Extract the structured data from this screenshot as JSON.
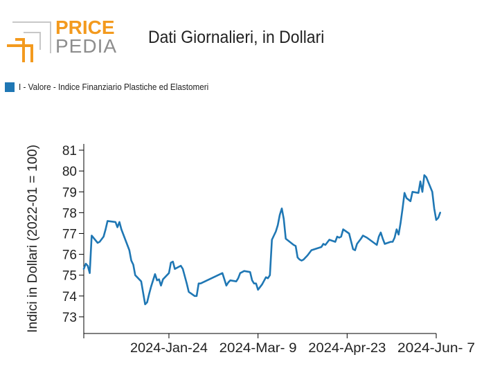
{
  "brand": {
    "line1": "PRICE",
    "line2": "PEDIA",
    "accent": "#f39a1e",
    "grey": "#8d8d8d"
  },
  "title": "Dati Giornalieri, in Dollari",
  "legend": {
    "label": "I - Valore - Indice Finanziario Plastiche ed Elastomeri",
    "color": "#1f77b4"
  },
  "chart_data": {
    "type": "line",
    "ylabel": "Indici in Dollari (2022-01 = 100)",
    "xlabel": "",
    "ylim": [
      72.2,
      81.3
    ],
    "yticks": [
      73,
      74,
      75,
      76,
      77,
      78,
      79,
      80,
      81
    ],
    "xlim": [
      "2023-12-12",
      "2024-06-07"
    ],
    "xticks": [
      {
        "date": "2024-01-24",
        "label": "2024-Jan-24"
      },
      {
        "date": "2024-03-09",
        "label": "2024-Mar- 9"
      },
      {
        "date": "2024-04-23",
        "label": "2024-Apr-23"
      },
      {
        "date": "2024-06-07",
        "label": "2024-Jun- 7"
      }
    ],
    "series": [
      {
        "color": "#1f77b4",
        "points": [
          [
            "2023-12-12",
            75.3
          ],
          [
            "2023-12-13",
            75.55
          ],
          [
            "2023-12-14",
            75.45
          ],
          [
            "2023-12-15",
            75.1
          ],
          [
            "2023-12-16",
            76.9
          ],
          [
            "2023-12-19",
            76.55
          ],
          [
            "2023-12-20",
            76.6
          ],
          [
            "2023-12-22",
            76.85
          ],
          [
            "2023-12-23",
            77.2
          ],
          [
            "2023-12-24",
            77.6
          ],
          [
            "2023-12-28",
            77.55
          ],
          [
            "2023-12-29",
            77.3
          ],
          [
            "2023-12-30",
            77.55
          ],
          [
            "2023-12-31",
            77.2
          ],
          [
            "2024-01-04",
            76.2
          ],
          [
            "2024-01-05",
            75.7
          ],
          [
            "2024-01-06",
            75.5
          ],
          [
            "2024-01-07",
            75.0
          ],
          [
            "2024-01-10",
            74.7
          ],
          [
            "2024-01-12",
            73.6
          ],
          [
            "2024-01-13",
            73.7
          ],
          [
            "2024-01-14",
            74.1
          ],
          [
            "2024-01-15",
            74.45
          ],
          [
            "2024-01-17",
            75.05
          ],
          [
            "2024-01-18",
            74.75
          ],
          [
            "2024-01-19",
            74.8
          ],
          [
            "2024-01-20",
            74.5
          ],
          [
            "2024-01-21",
            74.8
          ],
          [
            "2024-01-24",
            75.1
          ],
          [
            "2024-01-25",
            75.6
          ],
          [
            "2024-01-26",
            75.65
          ],
          [
            "2024-01-27",
            75.3
          ],
          [
            "2024-01-30",
            75.45
          ],
          [
            "2024-01-31",
            75.3
          ],
          [
            "2024-02-02",
            74.6
          ],
          [
            "2024-02-03",
            74.2
          ],
          [
            "2024-02-06",
            74.0
          ],
          [
            "2024-02-07",
            74.0
          ],
          [
            "2024-02-08",
            74.6
          ],
          [
            "2024-02-09",
            74.6
          ],
          [
            "2024-02-20",
            75.1
          ],
          [
            "2024-02-22",
            74.5
          ],
          [
            "2024-02-23",
            74.65
          ],
          [
            "2024-02-24",
            74.75
          ],
          [
            "2024-02-27",
            74.7
          ],
          [
            "2024-02-28",
            74.85
          ],
          [
            "2024-02-29",
            75.1
          ],
          [
            "2024-03-01",
            75.15
          ],
          [
            "2024-03-02",
            75.2
          ],
          [
            "2024-03-05",
            75.15
          ],
          [
            "2024-03-06",
            74.75
          ],
          [
            "2024-03-07",
            74.6
          ],
          [
            "2024-03-08",
            74.6
          ],
          [
            "2024-03-09",
            74.3
          ],
          [
            "2024-03-11",
            74.55
          ],
          [
            "2024-03-13",
            74.9
          ],
          [
            "2024-03-14",
            74.85
          ],
          [
            "2024-03-15",
            75.0
          ],
          [
            "2024-03-16",
            76.7
          ],
          [
            "2024-03-18",
            77.1
          ],
          [
            "2024-03-19",
            77.4
          ],
          [
            "2024-03-20",
            77.9
          ],
          [
            "2024-03-21",
            78.2
          ],
          [
            "2024-03-22",
            77.7
          ],
          [
            "2024-03-23",
            76.75
          ],
          [
            "2024-03-27",
            76.45
          ],
          [
            "2024-03-28",
            76.4
          ],
          [
            "2024-03-29",
            75.85
          ],
          [
            "2024-03-30",
            75.75
          ],
          [
            "2024-03-31",
            75.7
          ],
          [
            "2024-04-01",
            75.75
          ],
          [
            "2024-04-03",
            75.95
          ],
          [
            "2024-04-05",
            76.2
          ],
          [
            "2024-04-10",
            76.35
          ],
          [
            "2024-04-11",
            76.5
          ],
          [
            "2024-04-12",
            76.45
          ],
          [
            "2024-04-14",
            76.7
          ],
          [
            "2024-04-17",
            76.6
          ],
          [
            "2024-04-18",
            76.85
          ],
          [
            "2024-04-19",
            76.8
          ],
          [
            "2024-04-20",
            76.85
          ],
          [
            "2024-04-21",
            77.2
          ],
          [
            "2024-04-24",
            77.0
          ],
          [
            "2024-04-26",
            76.25
          ],
          [
            "2024-04-27",
            76.2
          ],
          [
            "2024-04-28",
            76.5
          ],
          [
            "2024-04-30",
            76.75
          ],
          [
            "2024-05-01",
            76.9
          ],
          [
            "2024-05-03",
            76.8
          ],
          [
            "2024-05-08",
            76.45
          ],
          [
            "2024-05-09",
            76.85
          ],
          [
            "2024-05-10",
            77.05
          ],
          [
            "2024-05-11",
            76.75
          ],
          [
            "2024-05-12",
            76.5
          ],
          [
            "2024-05-15",
            76.6
          ],
          [
            "2024-05-16",
            76.6
          ],
          [
            "2024-05-17",
            76.8
          ],
          [
            "2024-05-18",
            77.2
          ],
          [
            "2024-05-19",
            76.95
          ],
          [
            "2024-05-20",
            77.5
          ],
          [
            "2024-05-21",
            78.2
          ],
          [
            "2024-05-22",
            78.95
          ],
          [
            "2024-05-23",
            78.7
          ],
          [
            "2024-05-25",
            78.55
          ],
          [
            "2024-05-26",
            79.0
          ],
          [
            "2024-05-29",
            78.95
          ],
          [
            "2024-05-30",
            79.5
          ],
          [
            "2024-05-31",
            79.0
          ],
          [
            "2024-06-01",
            79.8
          ],
          [
            "2024-06-02",
            79.7
          ],
          [
            "2024-06-05",
            79.0
          ],
          [
            "2024-06-06",
            78.2
          ],
          [
            "2024-06-07",
            77.65
          ],
          [
            "2024-06-08",
            77.75
          ],
          [
            "2024-06-09",
            78.0
          ]
        ]
      }
    ]
  }
}
